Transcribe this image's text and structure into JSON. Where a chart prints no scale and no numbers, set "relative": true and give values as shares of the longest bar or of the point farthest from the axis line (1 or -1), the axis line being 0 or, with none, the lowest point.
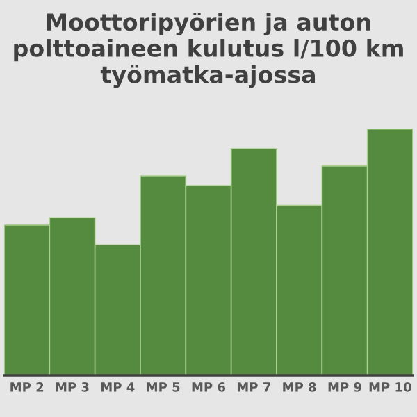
{
  "chart_data": {
    "type": "bar",
    "title": "Moottoripyörien ja auton polttoaineen kulutus l/100 km työmatka-ajossa",
    "categories": [
      "MP 2",
      "MP 3",
      "MP 4",
      "MP 5",
      "MP 6",
      "MP 7",
      "MP 8",
      "MP 9",
      "MP 10"
    ],
    "values": [
      0.61,
      0.64,
      0.53,
      0.81,
      0.77,
      0.92,
      0.69,
      0.85,
      1
    ],
    "color": "#548b3e",
    "relative": true,
    "grid": false,
    "legend": false
  }
}
